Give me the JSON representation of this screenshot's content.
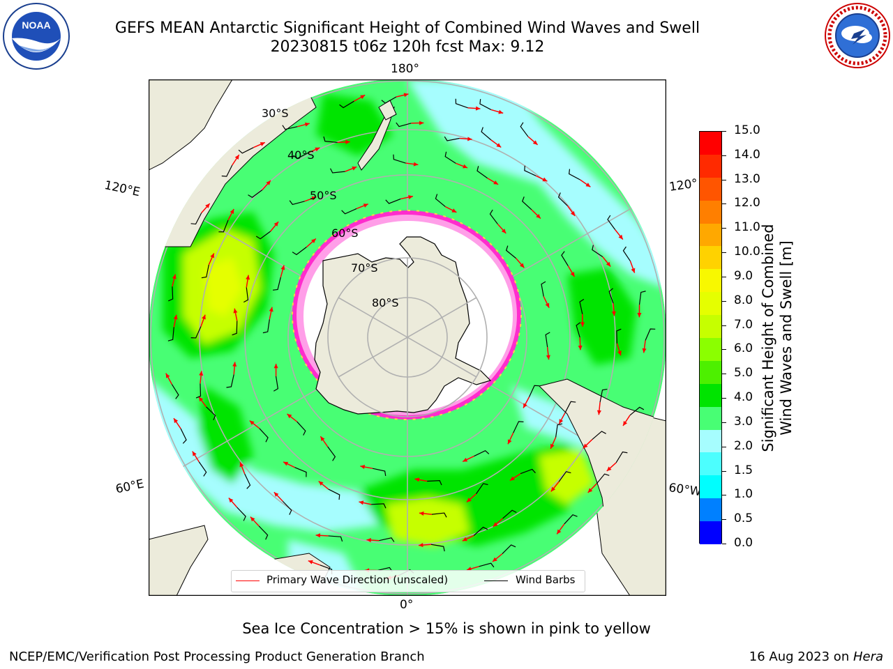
{
  "header": {
    "title_line1": "GEFS MEAN Antarctic Significant Height of Combined Wind Waves and Swell",
    "title_line2": "20230815 t06z 120h fcst   Max: 9.12"
  },
  "logos": {
    "left": "NOAA",
    "right": "NATIONAL WEATHER SERVICE"
  },
  "map": {
    "longitude_labels": {
      "top": "180°",
      "bottom": "0°",
      "upper_left": "120°E",
      "lower_left": "60°E",
      "upper_right": "120°",
      "lower_right": "60°W"
    },
    "latitude_labels": [
      "30°S",
      "40°S",
      "50°S",
      "60°S",
      "70°S",
      "80°S"
    ],
    "colors": {
      "ocean_light": "#a6fdfe",
      "ocean_mid": "#48fe74",
      "ocean_high": "#00e400",
      "land": "#ecebdb",
      "ice": "#ffffff",
      "ice_edge": "#ff2ccd",
      "ice_inner": "#ff9ee8",
      "arrow": "#ff0000",
      "barb": "#000000"
    }
  },
  "legend": {
    "wave_label": "Primary Wave Direction (unscaled)",
    "barb_label": "Wind Barbs",
    "wave_color": "#ff0000",
    "barb_color": "#000000"
  },
  "colorbar": {
    "label_line1": "Significant Height of Combined",
    "label_line2": "Wind Waves and Swell [m]",
    "ticks": [
      "15.0",
      "14.0",
      "13.0",
      "12.0",
      "11.0",
      "10.0",
      "9.0",
      "8.0",
      "7.0",
      "6.0",
      "5.0",
      "4.0",
      "3.0",
      "2.0",
      "1.5",
      "1.0",
      "0.5",
      "0.0"
    ],
    "colors": [
      "#ff0000",
      "#ff2a00",
      "#ff5500",
      "#ff7f00",
      "#ffa800",
      "#ffd200",
      "#f8f800",
      "#e5ff00",
      "#c6ff00",
      "#8bff00",
      "#4df000",
      "#00e400",
      "#48fe74",
      "#a6fdfe",
      "#4cfefe",
      "#00fefe",
      "#0080ff",
      "#0000ff"
    ]
  },
  "caption": "Sea Ice Concentration > 15% is shown in pink to yellow",
  "footer": {
    "left": "NCEP/EMC/Verification Post Processing Product Generation Branch",
    "right_date": "16 Aug 2023 on ",
    "right_machine": "Hera"
  }
}
